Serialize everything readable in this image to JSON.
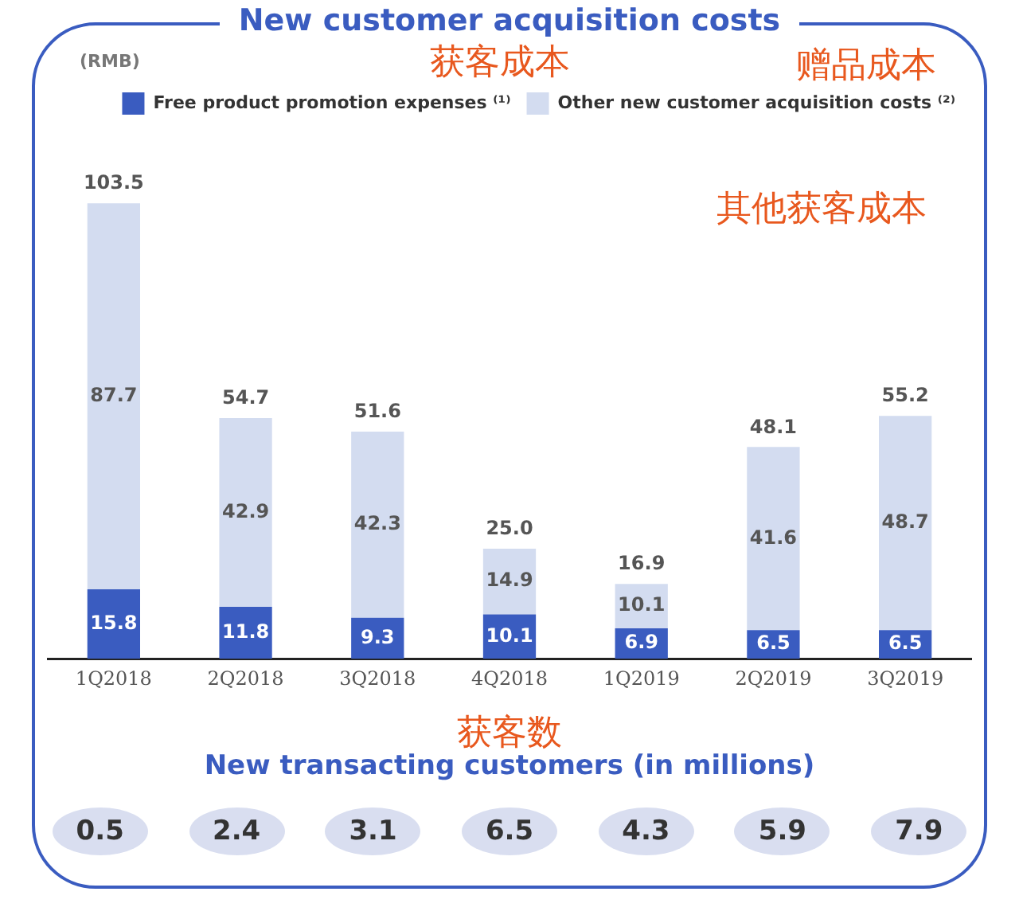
{
  "chart_data": [
    {
      "type": "bar",
      "title": "New customer acquisition costs",
      "ylabel": "(RMB)",
      "stacked": true,
      "legend": "top right",
      "data_labels": true,
      "grid": false,
      "categories": [
        "1Q2018",
        "2Q2018",
        "3Q2018",
        "4Q2018",
        "1Q2019",
        "2Q2019",
        "3Q2019"
      ],
      "series": [
        {
          "name": "Free product promotion expenses ⁽¹⁾",
          "color": "#3a5cc0",
          "values": [
            15.8,
            11.8,
            9.3,
            10.1,
            6.9,
            6.5,
            6.5
          ]
        },
        {
          "name": "Other new customer acquisition costs ⁽²⁾",
          "color": "#d3dcf0",
          "values": [
            87.7,
            42.9,
            42.3,
            14.9,
            10.1,
            41.6,
            48.7
          ]
        }
      ],
      "totals": [
        "103.5",
        "54.7",
        "51.6",
        "25.0",
        "16.9",
        "48.1",
        "55.2"
      ],
      "annotations": [
        "获客成本",
        "赠品成本",
        "其他获客成本"
      ]
    },
    {
      "type": "other",
      "title": "New transacting customers (in millions)",
      "values": [
        0.5,
        2.4,
        3.1,
        6.5,
        4.3,
        5.9,
        7.9
      ],
      "color": "#d9def0",
      "data_labels": true,
      "annotations": [
        "获客数"
      ]
    }
  ]
}
